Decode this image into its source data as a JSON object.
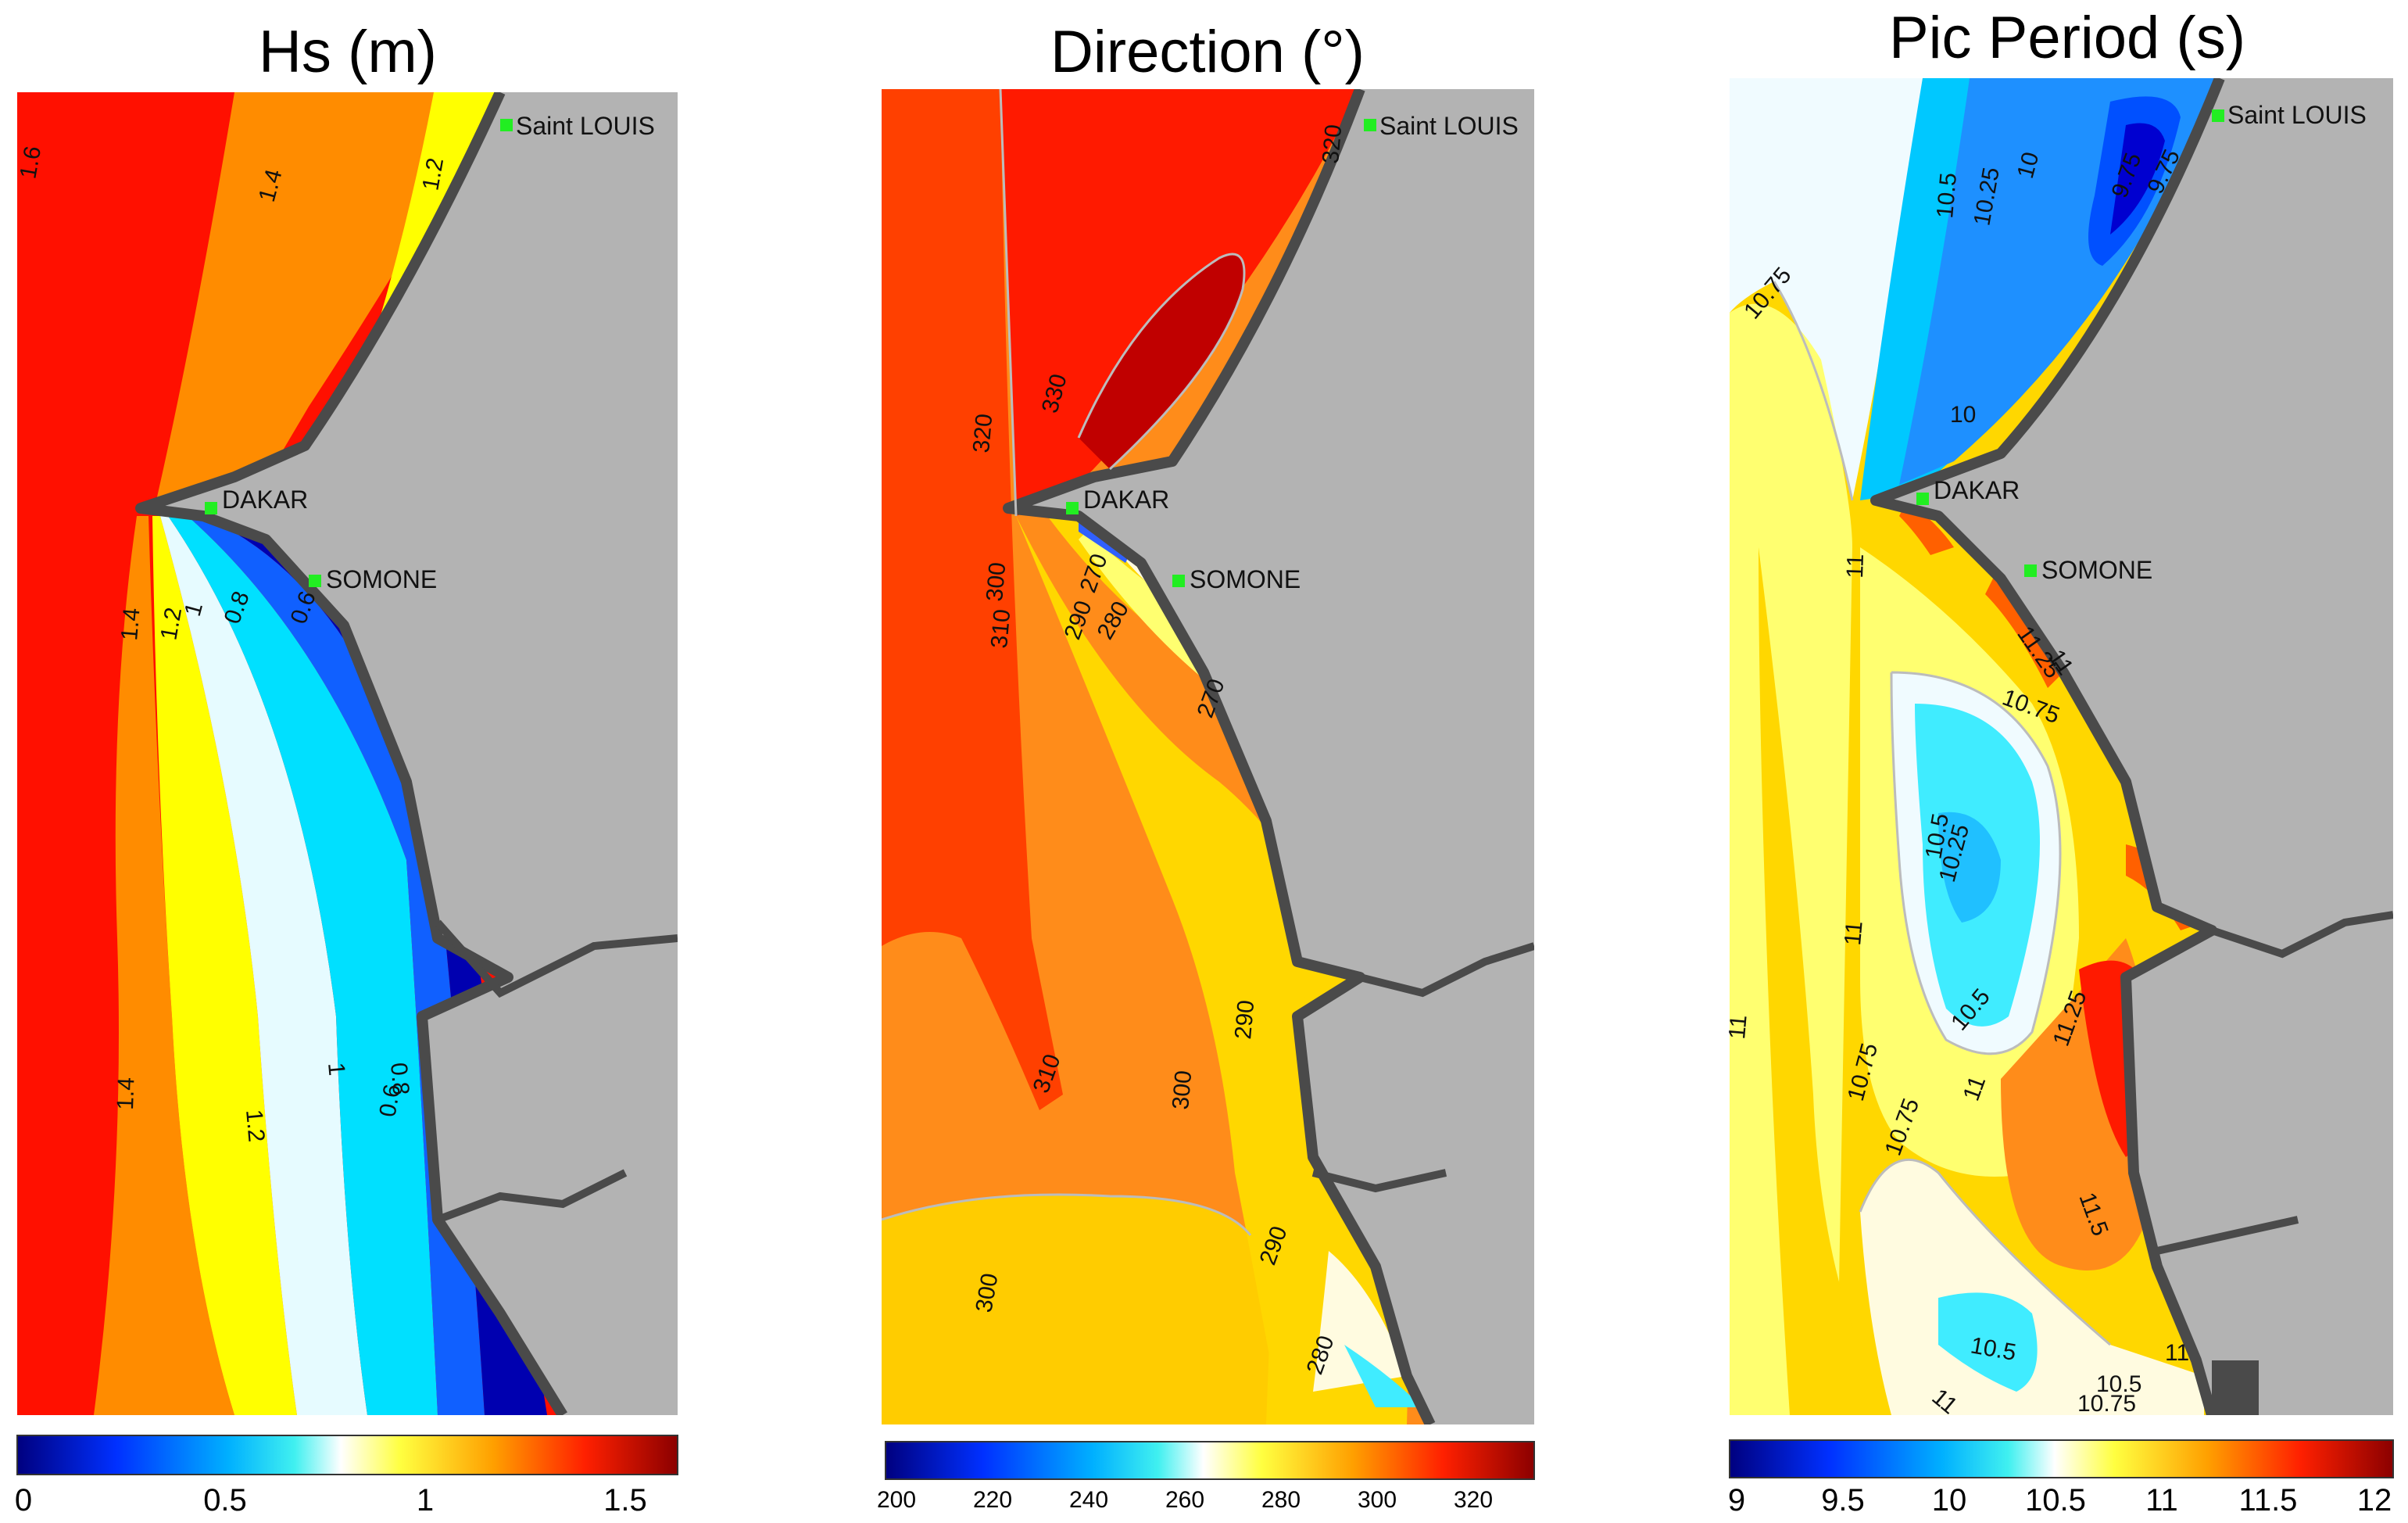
{
  "panels": [
    {
      "id": "hs",
      "title": "Hs (m)",
      "colorbar": {
        "min": 0,
        "max": 1.65,
        "ticks": [
          "0",
          "0.5",
          "1",
          "1.5"
        ],
        "tick_values": [
          0,
          0.5,
          1,
          1.5
        ]
      },
      "contour_labels": [
        "1.6",
        "1.4",
        "1.2",
        "1.4",
        "1.2",
        "1",
        "0.8",
        "0.6",
        "1.4",
        "1.2",
        "1",
        "0.8",
        "0.6"
      ],
      "places": [
        "Saint LOUIS",
        "DAKAR",
        "SOMONE"
      ]
    },
    {
      "id": "direction",
      "title": "Direction (°)",
      "colorbar": {
        "min": 200,
        "max": 335,
        "ticks": [
          "200",
          "220",
          "240",
          "260",
          "280",
          "300",
          "320"
        ],
        "tick_values": [
          200,
          220,
          240,
          260,
          280,
          300,
          320
        ]
      },
      "contour_labels": [
        "320",
        "330",
        "320",
        "300",
        "310",
        "290",
        "280",
        "270",
        "270",
        "300",
        "310",
        "290",
        "300",
        "290",
        "280"
      ],
      "places": [
        "Saint LOUIS",
        "DAKAR",
        "SOMONE"
      ]
    },
    {
      "id": "period",
      "title": "Pic Period (s)",
      "colorbar": {
        "min": 9,
        "max": 12,
        "ticks": [
          "9",
          "9.5",
          "10",
          "10.5",
          "11",
          "11.5",
          "12"
        ],
        "tick_values": [
          9,
          9.5,
          10,
          10.5,
          11,
          11.5,
          12
        ]
      },
      "contour_labels": [
        "10.5",
        "10.25",
        "10",
        "9.75",
        "9.75",
        "10.75",
        "10",
        "11",
        "11.25",
        "11",
        "10.75",
        "10.5",
        "10.25",
        "11",
        "11",
        "10.5",
        "11.25",
        "10.75",
        "10.75",
        "11",
        "11.5",
        "10.5",
        "11",
        "10.5",
        "11",
        "10.75"
      ],
      "places": [
        "Saint LOUIS",
        "DAKAR",
        "SOMONE"
      ]
    }
  ],
  "colors": {
    "land": "#b3b3b3",
    "shore": "#4a4a4a",
    "station": "#22ee22",
    "contour_line": "#bcbcbc"
  }
}
